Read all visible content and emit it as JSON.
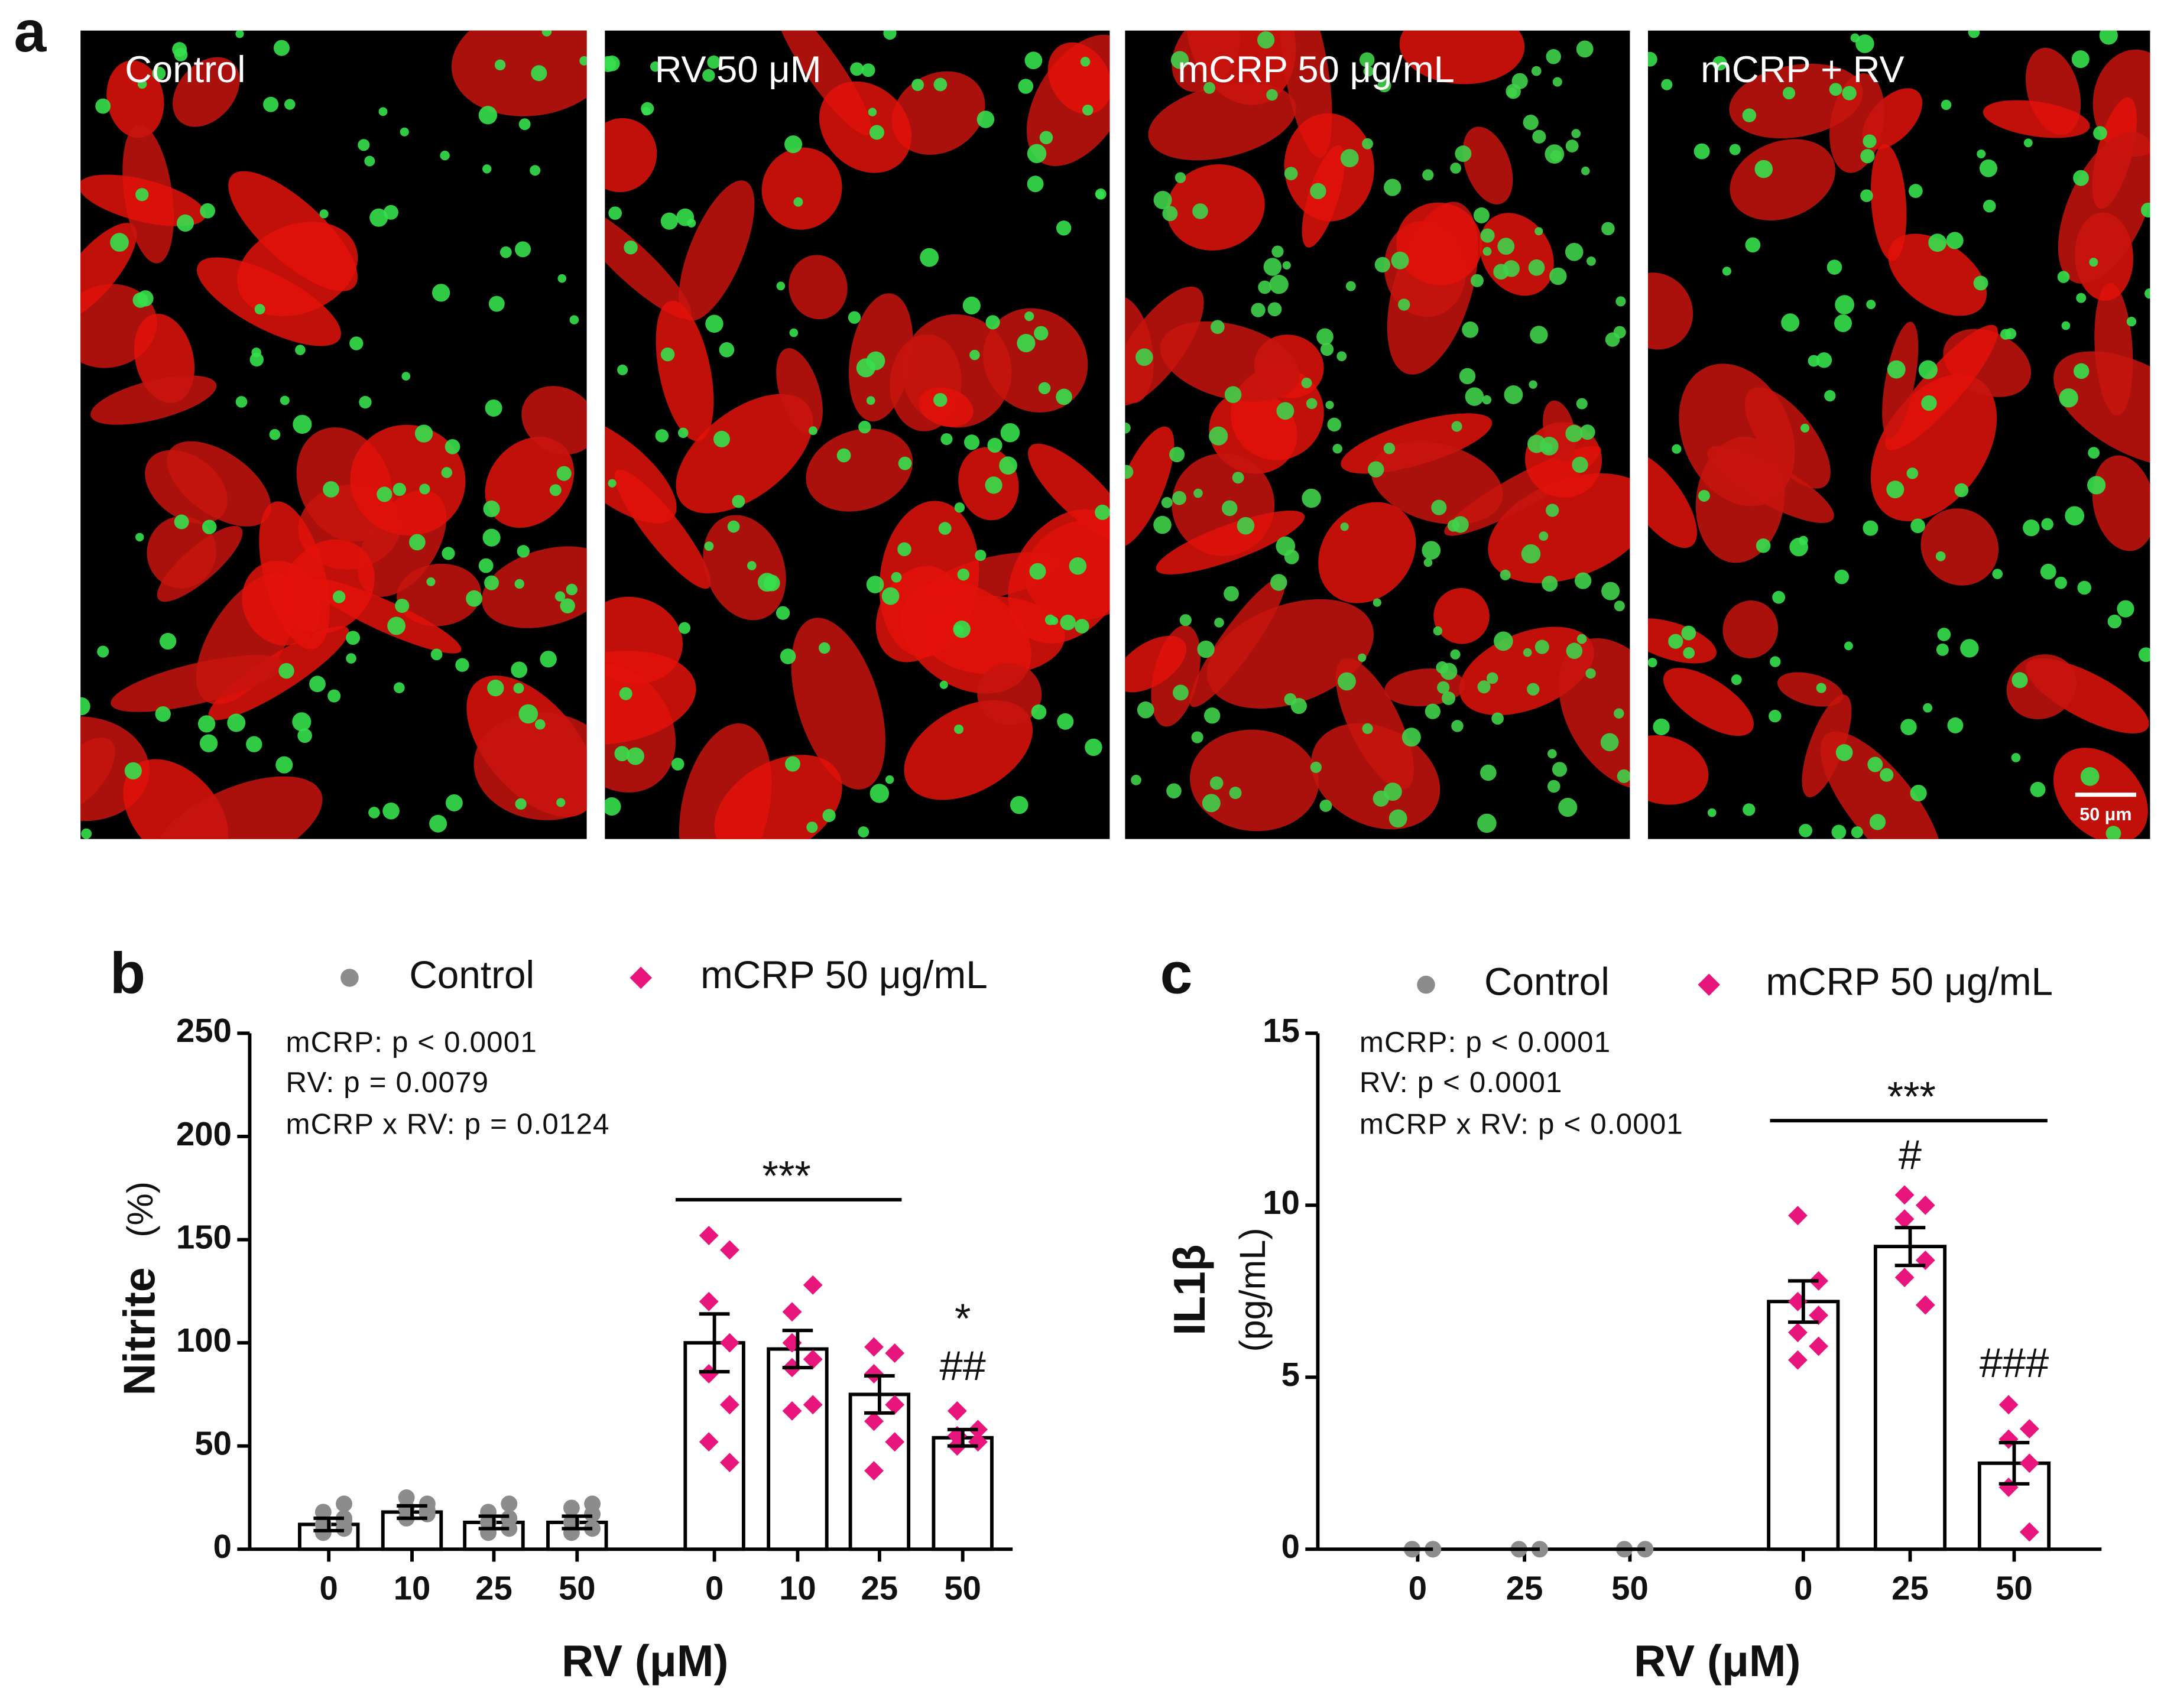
{
  "panel_labels": [
    "a"
  ],
  "images": [
    {
      "label": "Control"
    },
    {
      "label": "RV 50 μM"
    },
    {
      "label": "mCRP 50 μg/mL"
    },
    {
      "label": "mCRP + RV"
    }
  ],
  "scale_bar": "50 μm",
  "chart_data": [
    {
      "type": "bar",
      "panel": "b",
      "categories": [
        "0",
        "10",
        "25",
        "50",
        "0",
        "10",
        "25",
        "50"
      ],
      "xlabel": "RV (μM)",
      "ylabel": "Nitrite",
      "ylabel_unit": "(%)",
      "ylim": [
        0,
        250
      ],
      "yticks": [
        0,
        50,
        100,
        150,
        200,
        250
      ],
      "annotations": {
        "stats": [
          "mCRP: p < 0.0001",
          "RV: p = 0.0079",
          "mCRP x RV: p = 0.0124"
        ],
        "group_sig": "***",
        "bar_sig": [
          "*",
          "##"
        ]
      },
      "series": [
        {
          "name": "Control",
          "color": "#8c8c8c",
          "marker": "circle",
          "values": [
            12,
            18,
            13,
            13,
            null,
            null,
            null,
            null
          ],
          "errors": [
            3,
            3,
            3,
            3,
            null,
            null,
            null,
            null
          ],
          "points": [
            [
              8,
              10,
              12,
              15,
              18,
              22,
              9,
              14
            ],
            [
              15,
              17,
              20,
              22,
              25,
              19
            ],
            [
              8,
              10,
              13,
              15,
              18,
              22
            ],
            [
              8,
              10,
              13,
              17,
              20,
              22
            ],
            null,
            null,
            null,
            null
          ]
        },
        {
          "name": "mCRP 50 μg/mL",
          "color": "#e8157c",
          "marker": "diamond",
          "values": [
            null,
            null,
            null,
            null,
            100,
            97,
            75,
            54
          ],
          "errors": [
            null,
            null,
            null,
            null,
            14,
            9,
            9,
            4
          ],
          "points": [
            null,
            null,
            null,
            null,
            [
              152,
              145,
              120,
              100,
              85,
              70,
              52,
              42
            ],
            [
              115,
              128,
              100,
              92,
              88,
              70,
              67
            ],
            [
              98,
              95,
              85,
              70,
              62,
              52,
              38
            ],
            [
              67,
              58,
              55,
              52,
              50
            ]
          ]
        }
      ]
    },
    {
      "type": "bar",
      "panel": "c",
      "categories": [
        "0",
        "25",
        "50",
        "0",
        "25",
        "50"
      ],
      "xlabel": "RV (μM)",
      "ylabel": "IL1β",
      "ylabel_unit": "(pg/mL)",
      "ylim": [
        0,
        15
      ],
      "yticks": [
        0,
        5,
        10,
        15
      ],
      "annotations": {
        "stats": [
          "mCRP: p < 0.0001",
          "RV: p < 0.0001",
          "mCRP x RV: p < 0.0001"
        ],
        "group_sig": "***",
        "bar_sig": [
          "#",
          "###"
        ]
      },
      "series": [
        {
          "name": "Control",
          "color": "#8c8c8c",
          "marker": "circle",
          "values": [
            0,
            0,
            0,
            null,
            null,
            null
          ],
          "errors": [
            0,
            0,
            0,
            null,
            null,
            null
          ],
          "points": [
            [
              0,
              0,
              0,
              0,
              0,
              0
            ],
            [
              0,
              0,
              0,
              0
            ],
            [
              0,
              0,
              0,
              0
            ],
            null,
            null,
            null
          ]
        },
        {
          "name": "mCRP 50 μg/mL",
          "color": "#e8157c",
          "marker": "diamond",
          "values": [
            null,
            null,
            null,
            7.2,
            8.8,
            2.5
          ],
          "errors": [
            null,
            null,
            null,
            0.6,
            0.55,
            0.6
          ],
          "points": [
            null,
            null,
            null,
            [
              9.7,
              7.8,
              7.2,
              6.8,
              6.3,
              5.9,
              5.5
            ],
            [
              10.3,
              10,
              9.6,
              8.4,
              7.9,
              7.1
            ],
            [
              4.2,
              3.5,
              3.2,
              2.5,
              1.8,
              0.5
            ]
          ]
        }
      ]
    }
  ]
}
